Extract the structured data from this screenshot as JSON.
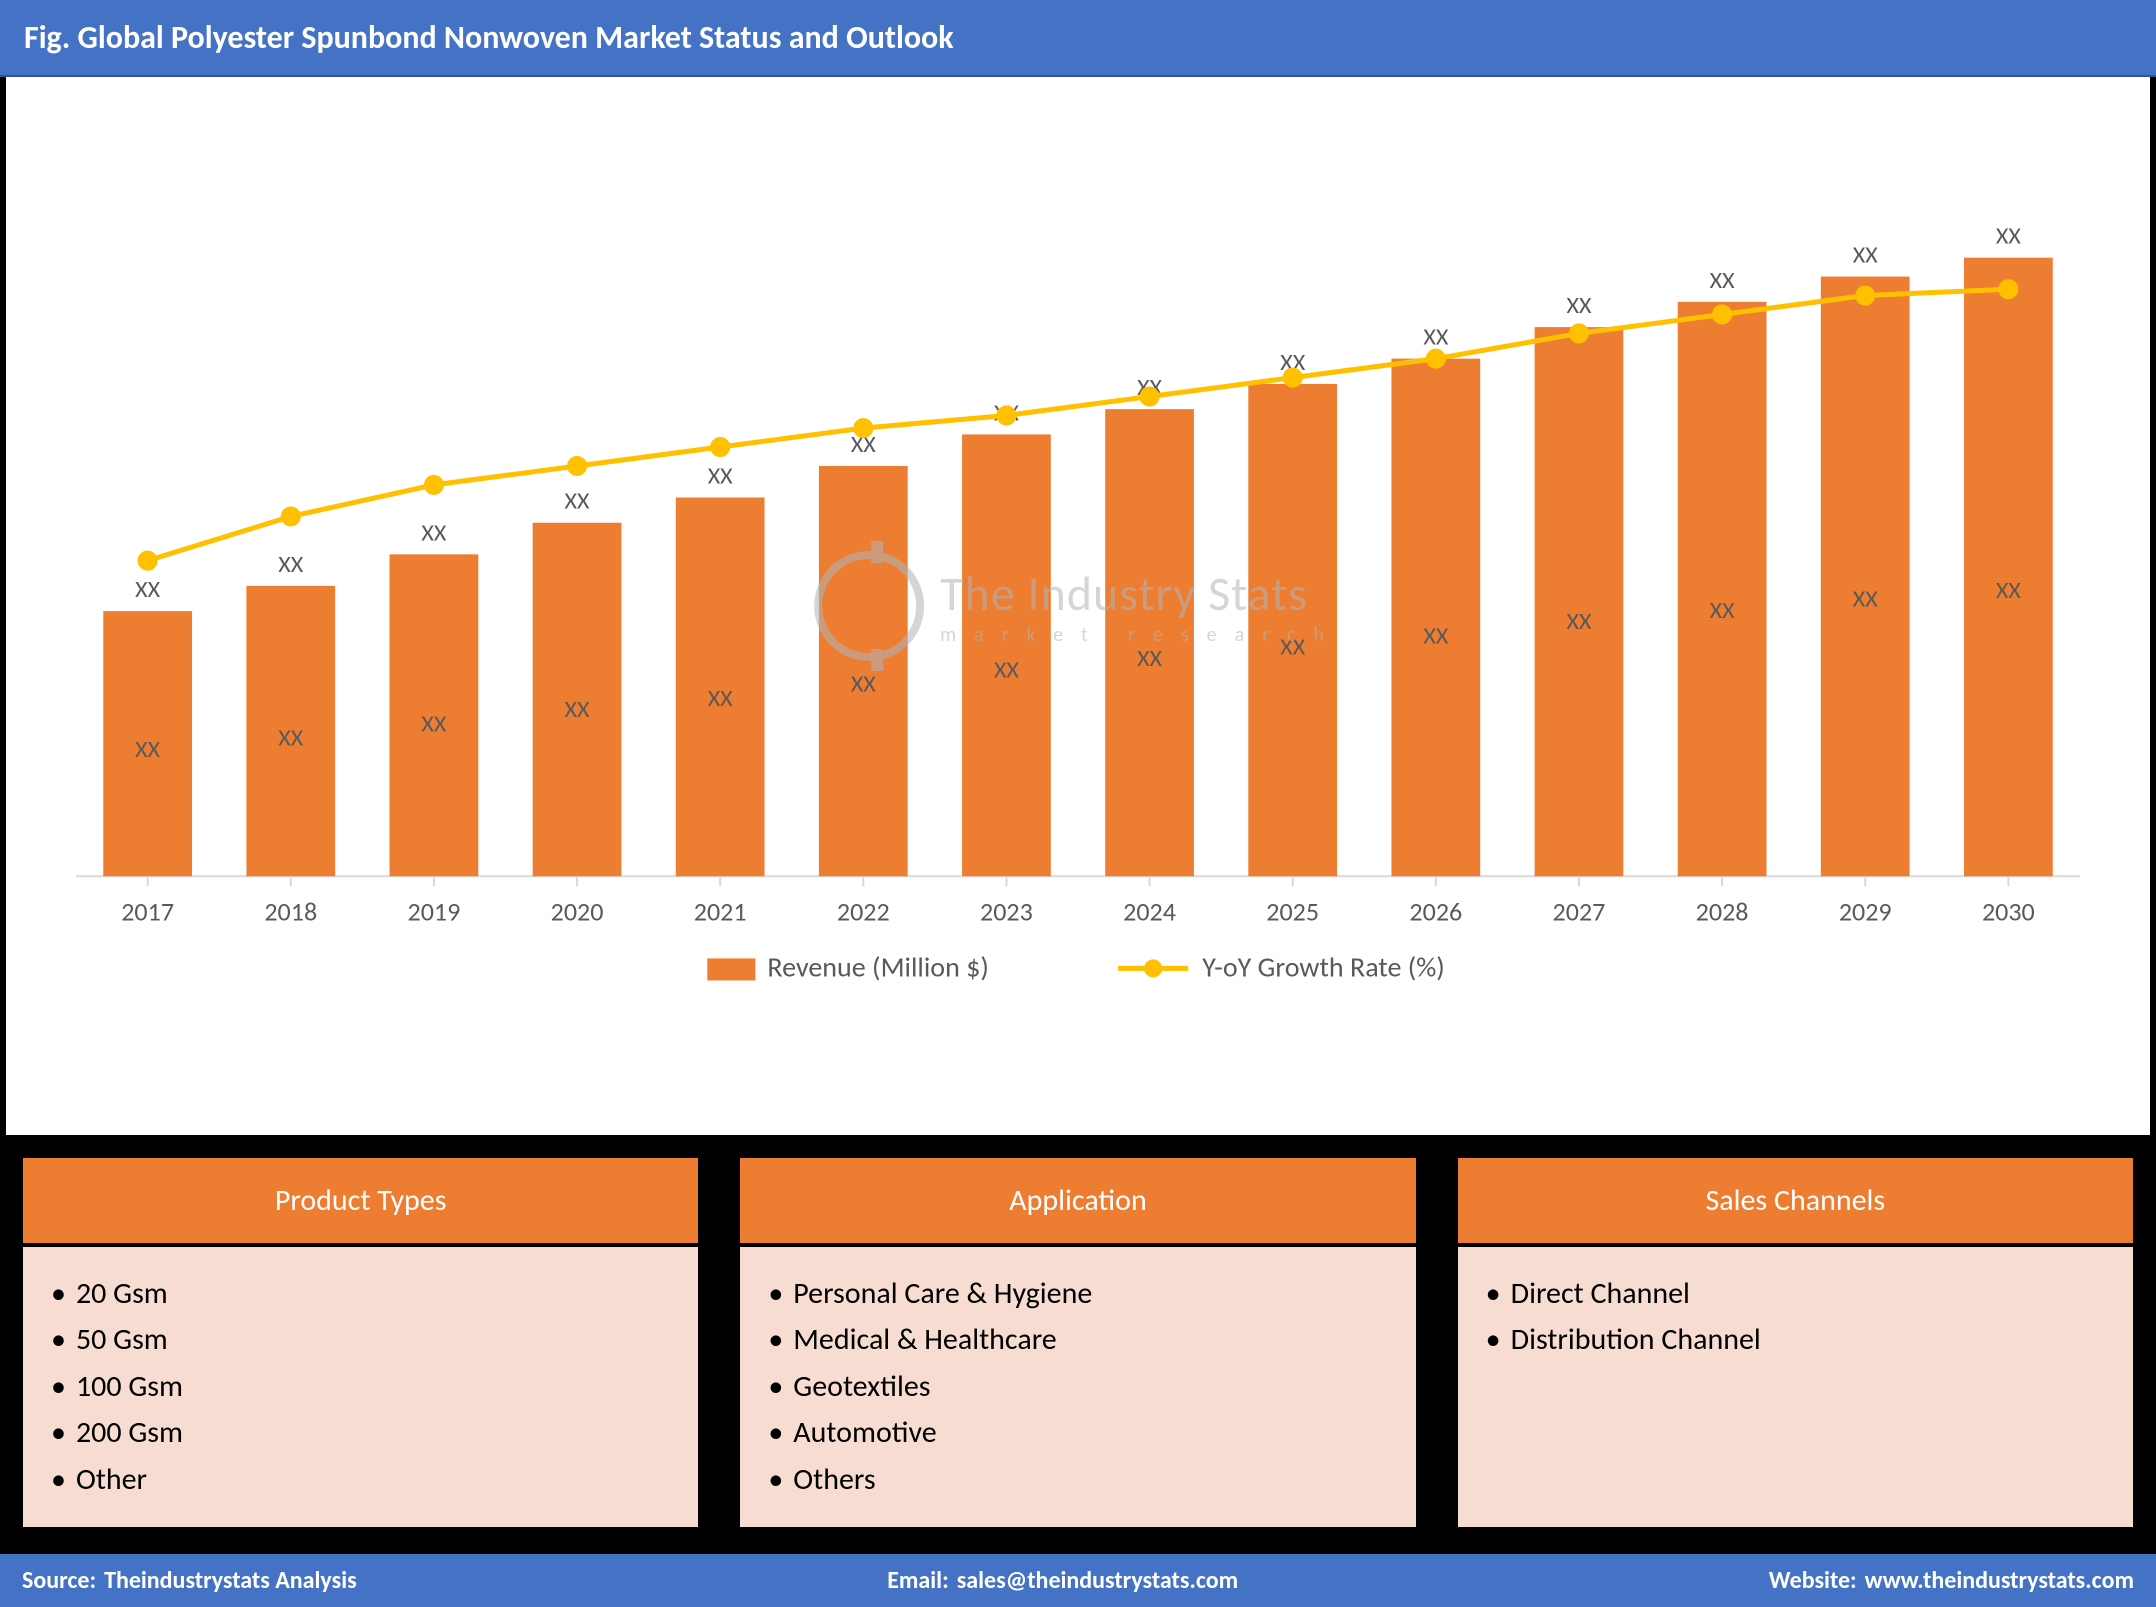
{
  "title": "Fig. Global Polyester Spunbond Nonwoven Market Status and Outlook",
  "chart": {
    "type": "bar+line",
    "years": [
      "2017",
      "2018",
      "2019",
      "2020",
      "2021",
      "2022",
      "2023",
      "2024",
      "2025",
      "2026",
      "2027",
      "2028",
      "2029",
      "2030"
    ],
    "bar_values": [
      42,
      46,
      51,
      56,
      60,
      65,
      70,
      74,
      78,
      82,
      87,
      91,
      95,
      98
    ],
    "bar_label": "XX",
    "bar_top_label": "XX",
    "line_values": [
      50,
      57,
      62,
      65,
      68,
      71,
      73,
      76,
      79,
      82,
      86,
      89,
      92,
      93
    ],
    "line_label": "XX",
    "bar_color": "#ed7d31",
    "line_color": "#ffc000",
    "marker_color": "#ffc000",
    "text_color": "#595959",
    "axis_color": "#d9d9d9",
    "background_color": "#ffffff",
    "ylim": [
      0,
      100
    ],
    "bar_width": 0.62,
    "line_width": 5,
    "marker_radius": 9,
    "axis_fontsize": 26,
    "label_fontsize": 24,
    "legend": {
      "items": [
        {
          "swatch": "bar",
          "text": "Revenue (Million $)"
        },
        {
          "swatch": "line",
          "text": "Y-oY Growth Rate (%)"
        }
      ],
      "fontsize": 28
    }
  },
  "watermark": {
    "main": "The Industry Stats",
    "sub": "market research"
  },
  "panels": [
    {
      "title": "Product Types",
      "items": [
        "20 Gsm",
        "50 Gsm",
        "100 Gsm",
        "200 Gsm",
        "Other"
      ]
    },
    {
      "title": "Application",
      "items": [
        "Personal Care & Hygiene",
        "Medical & Healthcare",
        "Geotextiles",
        "Automotive",
        "Others"
      ]
    },
    {
      "title": "Sales Channels",
      "items": [
        "Direct Channel",
        "Distribution Channel"
      ]
    }
  ],
  "footer": {
    "source_label": "Source:",
    "source_value": "Theindustrystats Analysis",
    "email_label": "Email:",
    "email_value": "sales@theindustrystats.com",
    "website_label": "Website:",
    "website_value": "www.theindustrystats.com"
  },
  "colors": {
    "title_bg": "#4472c4",
    "panel_header_bg": "#ed7d31",
    "panel_body_bg": "#f6dcd1",
    "panels_row_bg": "#000000",
    "footer_bg": "#4472c4"
  }
}
